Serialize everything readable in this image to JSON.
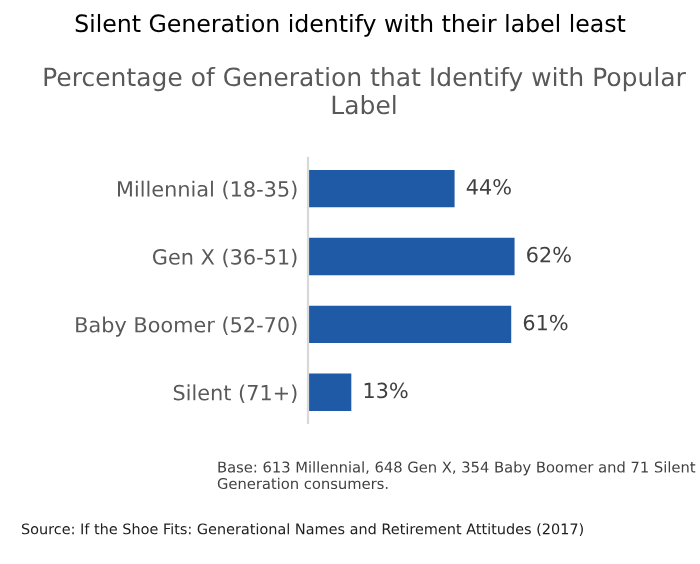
{
  "chart_data": {
    "type": "bar",
    "orientation": "horizontal",
    "title": "Silent Generation identify with their label least",
    "subtitle": "Percentage of Generation that Identify with Popular Label",
    "categories": [
      "Millennial (18-35)",
      "Gen X (36-51)",
      "Baby Boomer (52-70)",
      "Silent (71+)"
    ],
    "values": [
      44,
      62,
      61,
      13
    ],
    "value_labels": [
      "44%",
      "62%",
      "61%",
      "13%"
    ],
    "color": "#1f5aa6",
    "grid": false,
    "legend": false,
    "annotations": [
      "Base: 613 Millennial, 648 Gen X, 354 Baby Boomer and 71 Silent Generation consumers.",
      "Source: If the Shoe Fits: Generational Names and Retirement Attitudes (2017)"
    ]
  }
}
